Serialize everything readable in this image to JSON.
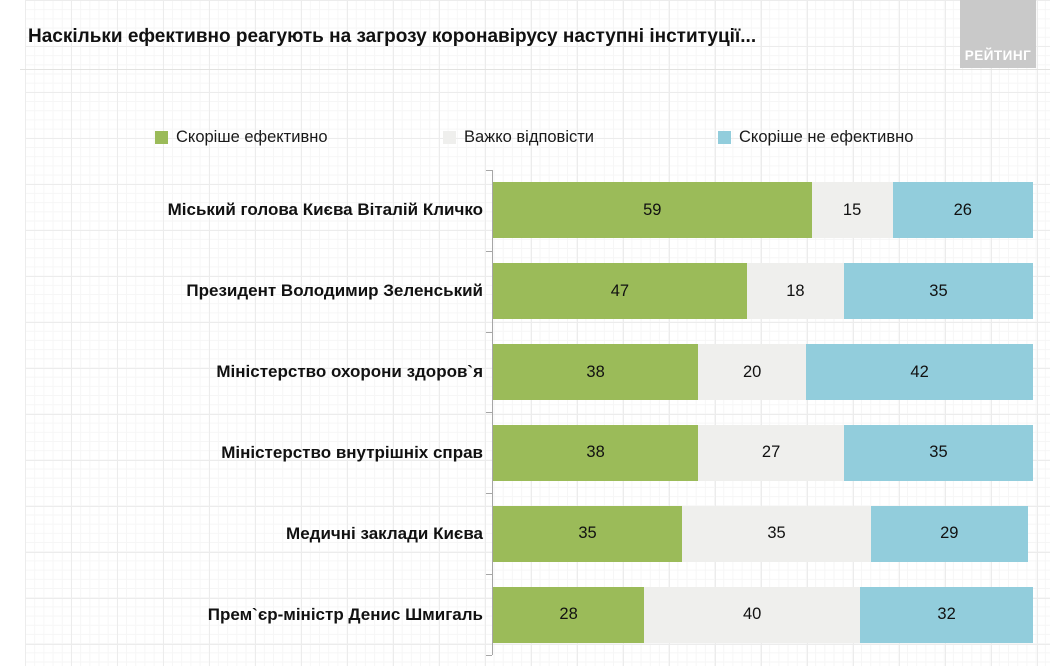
{
  "title": "Наскільки ефективно реагують на загрозу коронавірусу наступні інституції...",
  "logo": {
    "text": "РЕЙТИНГ"
  },
  "colors": {
    "effective": "#9BBB59",
    "hard_to_say": "#EFEFED",
    "not_effective": "#92CDDC",
    "axis": "#A6A6A6",
    "logo_background": "#C9C9C9"
  },
  "legend": [
    {
      "key": "effective",
      "label": "Скоріше ефективно",
      "color": "#9BBB59"
    },
    {
      "key": "hard-to-say",
      "label": "Важко відповісти",
      "color": "#EFEFED"
    },
    {
      "key": "not-effective",
      "label": "Скоріше не ефективно",
      "color": "#92CDDC"
    }
  ],
  "chart_data": {
    "type": "bar",
    "variant": "horizontal-stacked",
    "title": "Наскільки ефективно реагують на загрозу коронавірусу наступні інституції...",
    "categories": [
      "Міський голова Києва Віталій Кличко",
      "Президент Володимир Зеленський",
      "Міністерство охорони здоров`я",
      "Міністерство внутрішніх справ",
      "Медичні заклади Києва",
      "Прем`єр-міністр Денис Шмигаль"
    ],
    "series": [
      {
        "key": "effective",
        "name": "Скоріше ефективно",
        "color": "#9BBB59",
        "values": [
          59,
          47,
          38,
          38,
          35,
          28
        ]
      },
      {
        "key": "hard-to-say",
        "name": "Важко відповісти",
        "color": "#EFEFED",
        "values": [
          15,
          18,
          20,
          27,
          35,
          40
        ]
      },
      {
        "key": "not-effective",
        "name": "Скоріше не ефективно",
        "color": "#92CDDC",
        "values": [
          26,
          35,
          42,
          35,
          29,
          32
        ]
      }
    ],
    "xlim": [
      0,
      100
    ],
    "value_labels": "inside-center",
    "legend_position": "top",
    "grid": false
  }
}
